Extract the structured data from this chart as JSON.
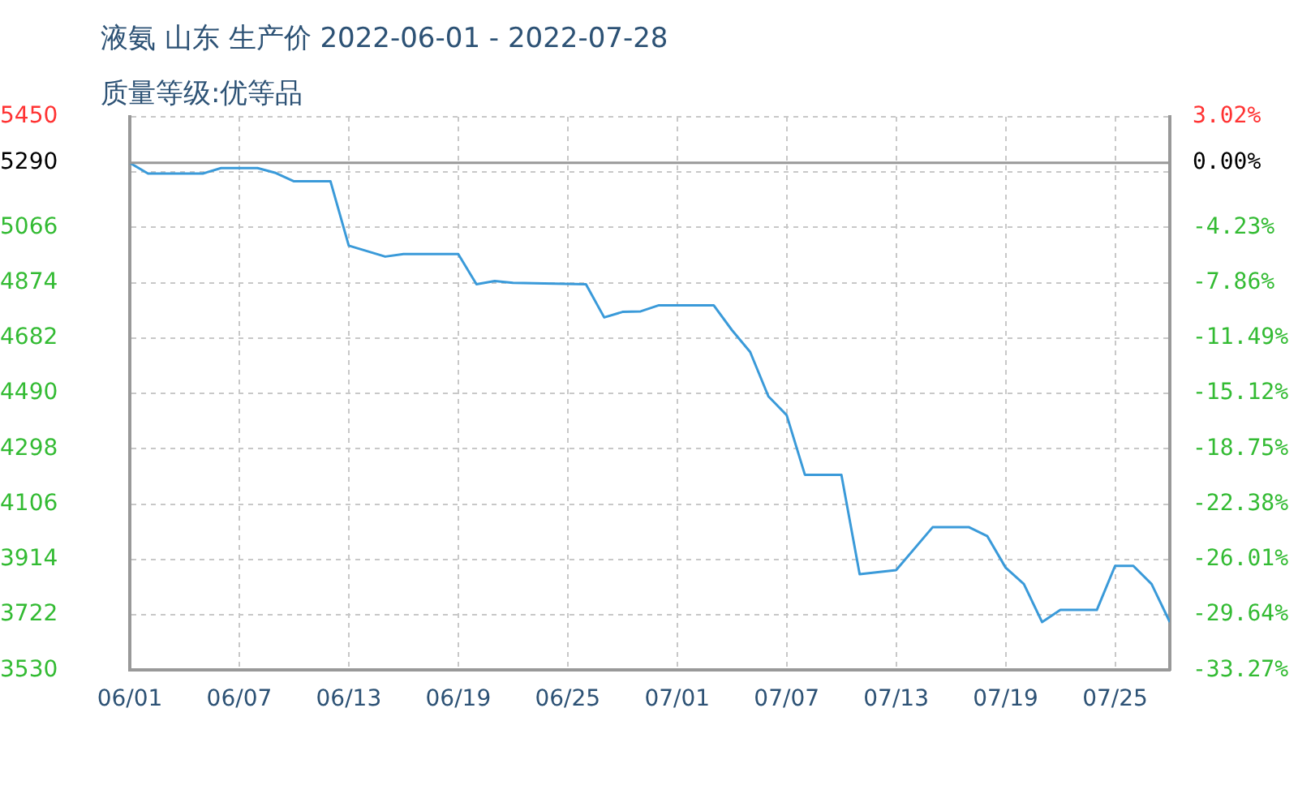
{
  "chart_data": {
    "type": "line",
    "title": "液氨 山东 生产价 2022-06-01 - 2022-07-28",
    "subtitle": "质量等级:优等品",
    "x": [
      "2022-06-01",
      "2022-06-02",
      "2022-06-05",
      "2022-06-06",
      "2022-06-08",
      "2022-06-09",
      "2022-06-10",
      "2022-06-12",
      "2022-06-13",
      "2022-06-14",
      "2022-06-15",
      "2022-06-16",
      "2022-06-19",
      "2022-06-20",
      "2022-06-21",
      "2022-06-22",
      "2022-06-26",
      "2022-06-27",
      "2022-06-28",
      "2022-06-29",
      "2022-06-30",
      "2022-07-03",
      "2022-07-04",
      "2022-07-05",
      "2022-07-06",
      "2022-07-07",
      "2022-07-08",
      "2022-07-10",
      "2022-07-11",
      "2022-07-13",
      "2022-07-15",
      "2022-07-17",
      "2022-07-18",
      "2022-07-19",
      "2022-07-20",
      "2022-07-21",
      "2022-07-22",
      "2022-07-24",
      "2022-07-25",
      "2022-07-26",
      "2022-07-27",
      "2022-07-28"
    ],
    "series": [
      {
        "color": "#3a9ad9",
        "values": [
          5290,
          5253,
          5253,
          5272,
          5272,
          5255,
          5226,
          5226,
          5003,
          4984,
          4965,
          4974,
          4974,
          4869,
          4880,
          4874,
          4869,
          4754,
          4773,
          4775,
          4796,
          4796,
          4710,
          4634,
          4480,
          4415,
          4208,
          4208,
          3863,
          3877,
          4026,
          4026,
          3995,
          3886,
          3829,
          3697,
          3739,
          3739,
          3892,
          3892,
          3829,
          3697
        ]
      }
    ],
    "xlim": [
      "2022-06-01",
      "2022-07-28"
    ],
    "xticks": [
      {
        "value": "2022-06-01",
        "label": "06/01"
      },
      {
        "value": "2022-06-07",
        "label": "06/07"
      },
      {
        "value": "2022-06-13",
        "label": "06/13"
      },
      {
        "value": "2022-06-19",
        "label": "06/19"
      },
      {
        "value": "2022-06-25",
        "label": "06/25"
      },
      {
        "value": "2022-07-01",
        "label": "07/01"
      },
      {
        "value": "2022-07-07",
        "label": "07/07"
      },
      {
        "value": "2022-07-13",
        "label": "07/13"
      },
      {
        "value": "2022-07-19",
        "label": "07/19"
      },
      {
        "value": "2022-07-25",
        "label": "07/25"
      }
    ],
    "ylim": [
      3530,
      5450
    ],
    "yticks": [
      3530,
      3722,
      3914,
      4106,
      4298,
      4490,
      4682,
      4874,
      5066,
      {
        "value": 5258,
        "label": null
      },
      5290,
      5450
    ],
    "y2lim": [
      -33.27,
      3.02
    ],
    "y2ticks": [
      {
        "value": -33.27,
        "label": "-33.27%"
      },
      {
        "value": -29.64,
        "label": "-29.64%"
      },
      {
        "value": -26.01,
        "label": "-26.01%"
      },
      {
        "value": -22.38,
        "label": "-22.38%"
      },
      {
        "value": -18.75,
        "label": "-18.75%"
      },
      {
        "value": -15.12,
        "label": "-15.12%"
      },
      {
        "value": -11.49,
        "label": "-11.49%"
      },
      {
        "value": -7.86,
        "label": "-7.86%"
      },
      {
        "value": -4.23,
        "label": "-4.23%"
      },
      {
        "value": 0,
        "label": "0.00%"
      },
      {
        "value": 3.02,
        "label": "3.02%"
      }
    ],
    "ref_lines": [
      {
        "axis": "y",
        "value": 5290,
        "color": "#999999"
      }
    ],
    "grid": true,
    "legend": false,
    "marker": "none",
    "line_style": "solid"
  }
}
